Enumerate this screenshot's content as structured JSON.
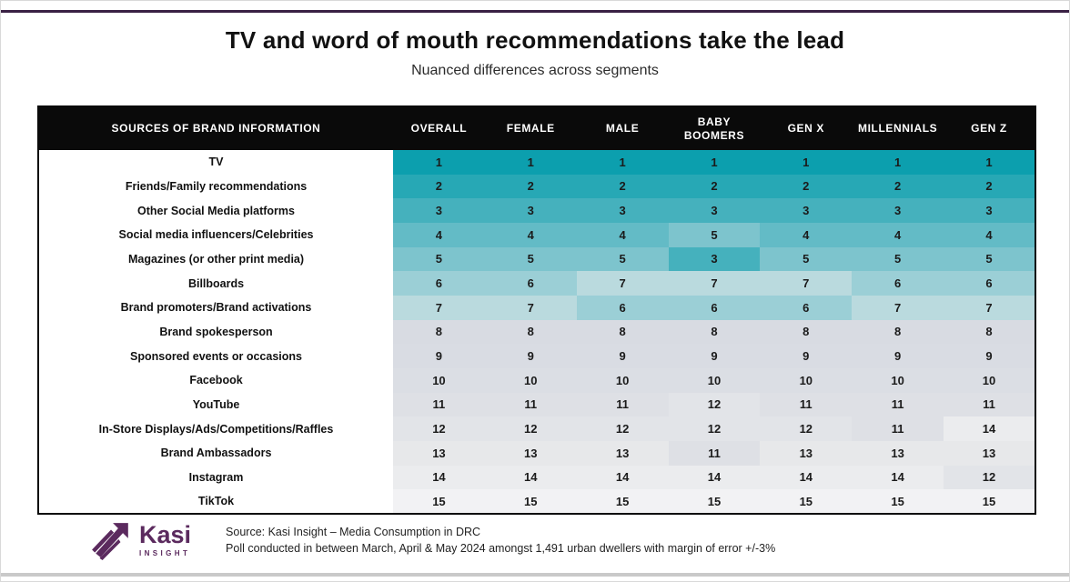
{
  "page": {
    "title": "TV and word of mouth recommendations take the lead",
    "subtitle": "Nuanced differences across segments"
  },
  "footer": {
    "logo_text": "Kasi",
    "logo_subtext": "INSIGHT",
    "source_line1": "Source: Kasi Insight – Media Consumption in DRC",
    "source_line2": "Poll conducted  in between March, April & May 2024 amongst 1,491 urban dwellers with margin of error +/-3%"
  },
  "theme": {
    "accent_purple": "#5b2a5e",
    "top_bar_color": "#3a2144",
    "header_bg": "#0a0a0a",
    "header_text": "#ffffff",
    "bottom_bar_color": "#c9c9c9",
    "rank_colors": {
      "1": "#0c9fae",
      "2": "#27a8b5",
      "3": "#45b1bd",
      "4": "#63bbc6",
      "5": "#7dc4cd",
      "6": "#9bcfd6",
      "7": "#badade",
      "8": "#d8dbe2",
      "9": "#d9dce3",
      "10": "#dbdee4",
      "11": "#dee0e5",
      "12": "#e2e4e8",
      "13": "#e7e8ea",
      "14": "#ebecee",
      "15": "#f2f2f4"
    }
  },
  "chart_data": {
    "type": "heatmap",
    "title": "TV and word of mouth recommendations take the lead",
    "subtitle": "Nuanced differences across segments",
    "value_meaning": "rank of brand information source (1 = most used, 15 = least used)",
    "color_scale": "teal (rank 1) fading to light gray (rank 15)",
    "columns": [
      "SOURCES OF BRAND INFORMATION",
      "OVERALL",
      "FEMALE",
      "MALE",
      "BABY BOOMERS",
      "GEN X",
      "MILLENNIALS",
      "GEN Z"
    ],
    "rows": [
      {
        "label": "TV",
        "values": [
          1,
          1,
          1,
          1,
          1,
          1,
          1
        ]
      },
      {
        "label": "Friends/Family recommendations",
        "values": [
          2,
          2,
          2,
          2,
          2,
          2,
          2
        ]
      },
      {
        "label": "Other Social Media platforms",
        "values": [
          3,
          3,
          3,
          3,
          3,
          3,
          3
        ]
      },
      {
        "label": "Social media influencers/Celebrities",
        "values": [
          4,
          4,
          4,
          5,
          4,
          4,
          4
        ]
      },
      {
        "label": "Magazines (or other print media)",
        "values": [
          5,
          5,
          5,
          3,
          5,
          5,
          5
        ]
      },
      {
        "label": "Billboards",
        "values": [
          6,
          6,
          7,
          7,
          7,
          6,
          6
        ]
      },
      {
        "label": "Brand promoters/Brand activations",
        "values": [
          7,
          7,
          6,
          6,
          6,
          7,
          7
        ]
      },
      {
        "label": "Brand spokesperson",
        "values": [
          8,
          8,
          8,
          8,
          8,
          8,
          8
        ]
      },
      {
        "label": "Sponsored events or occasions",
        "values": [
          9,
          9,
          9,
          9,
          9,
          9,
          9
        ]
      },
      {
        "label": "Facebook",
        "values": [
          10,
          10,
          10,
          10,
          10,
          10,
          10
        ]
      },
      {
        "label": "YouTube",
        "values": [
          11,
          11,
          11,
          12,
          11,
          11,
          11
        ]
      },
      {
        "label": "In-Store Displays/Ads/Competitions/Raffles",
        "values": [
          12,
          12,
          12,
          12,
          12,
          11,
          14
        ]
      },
      {
        "label": "Brand Ambassadors",
        "values": [
          13,
          13,
          13,
          11,
          13,
          13,
          13
        ]
      },
      {
        "label": "Instagram",
        "values": [
          14,
          14,
          14,
          14,
          14,
          14,
          12
        ]
      },
      {
        "label": "TikTok",
        "values": [
          15,
          15,
          15,
          15,
          15,
          15,
          15
        ]
      }
    ]
  }
}
